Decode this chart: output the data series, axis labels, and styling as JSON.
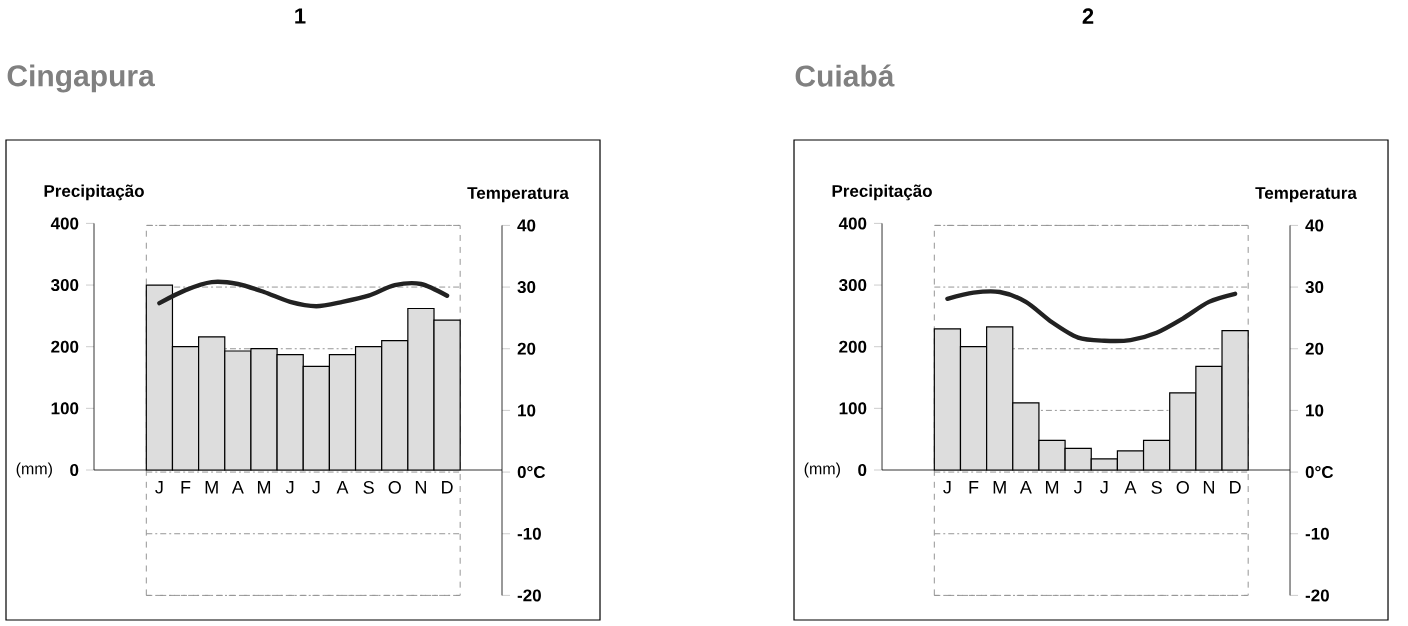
{
  "chart_data": [
    {
      "type": "bar",
      "title": "1",
      "subtitle": "Cingapura",
      "ylabel": "Precipitação",
      "y2label": "Temperatura",
      "categories": [
        "J",
        "F",
        "M",
        "A",
        "M",
        "J",
        "J",
        "A",
        "S",
        "O",
        "N",
        "D"
      ],
      "series": [
        {
          "color": "#dddddd",
          "values": [
            300,
            200,
            216,
            193,
            197,
            187,
            168,
            187,
            200,
            210,
            262,
            243
          ]
        },
        {
          "type": "line",
          "axis": "y2",
          "color": "#222222",
          "values": [
            27.4,
            29.5,
            30.8,
            30.5,
            29.2,
            27.6,
            26.9,
            27.6,
            28.6,
            30.3,
            30.5,
            28.6
          ]
        }
      ],
      "ylim": [
        0,
        400
      ],
      "yticks": [
        0,
        100,
        200,
        300,
        400
      ],
      "y2lim": [
        -20,
        40
      ],
      "y2ticks": [
        -20,
        -10,
        {
          "value": 0,
          "label": "0°C"
        },
        10,
        20,
        30,
        40
      ],
      "grid": "y",
      "annotations": [
        "(mm)"
      ]
    },
    {
      "type": "bar",
      "title": "2",
      "subtitle": "Cuiabá",
      "ylabel": "Precipitação",
      "y2label": "Temperatura",
      "categories": [
        "J",
        "F",
        "M",
        "A",
        "M",
        "J",
        "J",
        "A",
        "S",
        "O",
        "N",
        "D"
      ],
      "series": [
        {
          "color": "#dddddd",
          "values": [
            229,
            200,
            232,
            109,
            48,
            35,
            18,
            31,
            48,
            125,
            168,
            226
          ]
        },
        {
          "type": "line",
          "axis": "y2",
          "color": "#222222",
          "values": [
            28.1,
            29.1,
            29.2,
            27.6,
            24.3,
            21.8,
            21.3,
            21.4,
            22.6,
            24.9,
            27.6,
            28.9
          ]
        }
      ],
      "ylim": [
        0,
        400
      ],
      "yticks": [
        0,
        100,
        200,
        300,
        400
      ],
      "y2lim": [
        -20,
        40
      ],
      "y2ticks": [
        -20,
        -10,
        {
          "value": 0,
          "label": "0°C"
        },
        10,
        20,
        30,
        40
      ],
      "grid": "y",
      "annotations": [
        "(mm)"
      ]
    }
  ]
}
